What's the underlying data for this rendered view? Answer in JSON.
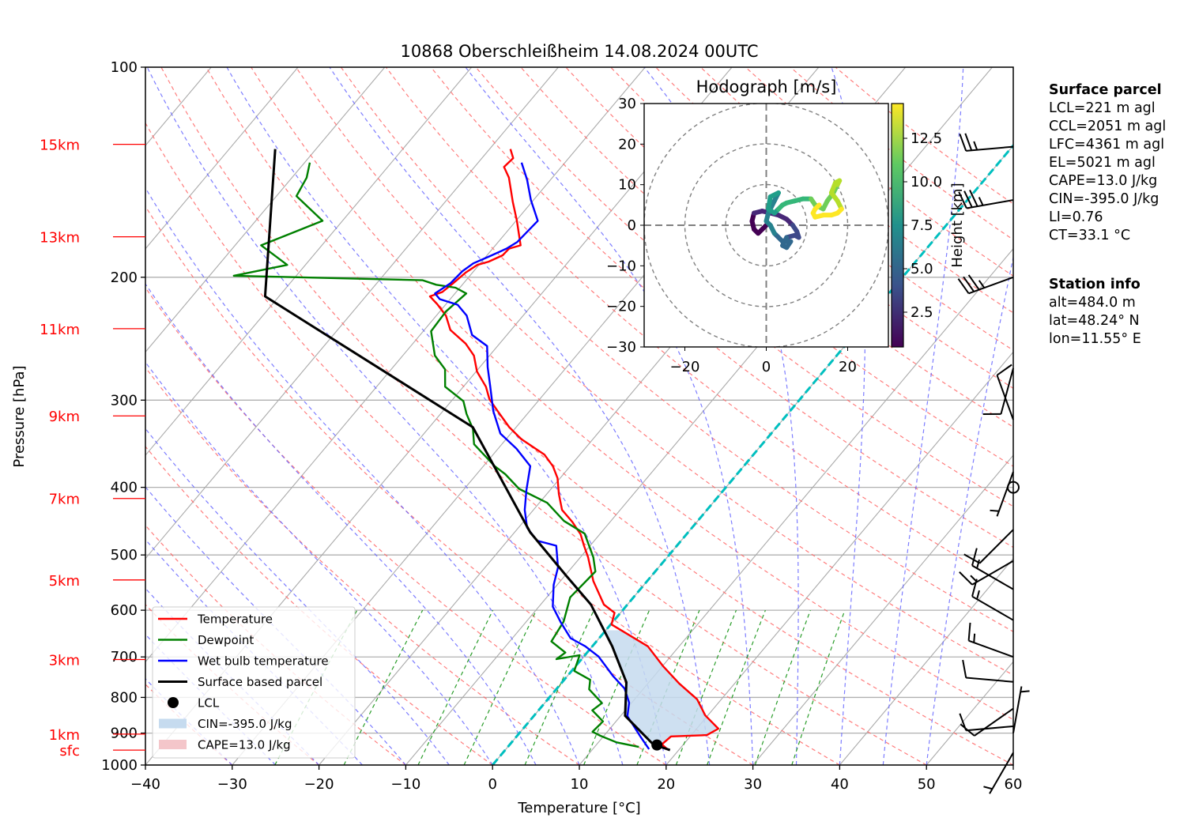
{
  "chart_data": {
    "type": "line",
    "title": "10868 Oberschleißheim 14.08.2024 00UTC",
    "xlabel": "Temperature [°C]",
    "ylabel": "Pressure [hPa]",
    "xlim": [
      -40,
      60
    ],
    "ylim": [
      1000,
      100
    ],
    "yscale": "log",
    "skew": "skew-T (isotherms tilted 45°)",
    "grid": true,
    "x_ticks": [
      -40,
      -30,
      -20,
      -10,
      0,
      10,
      20,
      30,
      40,
      50,
      60
    ],
    "x_tick_labels": [
      "−40",
      "−30",
      "−20",
      "−10",
      "0",
      "10",
      "20",
      "30",
      "40",
      "50",
      "60"
    ],
    "y_ticks": [
      100,
      200,
      300,
      400,
      500,
      600,
      700,
      800,
      900,
      1000
    ],
    "y_tick_labels": [
      "100",
      "200",
      "300",
      "400",
      "500",
      "600",
      "700",
      "800",
      "900",
      "1000"
    ],
    "height_markers": [
      {
        "label": "15km",
        "p": 129
      },
      {
        "label": "13km",
        "p": 175
      },
      {
        "label": "11km",
        "p": 237
      },
      {
        "label": "9km",
        "p": 316
      },
      {
        "label": "7km",
        "p": 415
      },
      {
        "label": "5km",
        "p": 543
      },
      {
        "label": "3km",
        "p": 706
      },
      {
        "label": "1km",
        "p": 903
      },
      {
        "label": "sfc",
        "p": 952
      }
    ],
    "freezing_line": {
      "name": "0°C isotherm",
      "T": 0,
      "color": "#00bfbf"
    },
    "series": [
      {
        "name": "Temperature",
        "color": "#ff0000",
        "p": [
          949,
          934,
          910,
          906,
          887,
          849,
          805,
          764,
          722,
          676,
          645,
          629,
          605,
          589,
          545,
          504,
          485,
          467,
          448,
          431,
          409,
          388,
          373,
          359,
          341,
          328,
          311,
          299,
          287,
          273,
          259,
          249,
          238,
          227,
          219,
          213,
          210,
          204,
          197,
          192,
          190,
          186,
          182,
          180,
          166,
          156,
          144,
          139,
          135,
          131
        ],
        "T": [
          18.6,
          17.5,
          17.8,
          21.8,
          22.5,
          19.7,
          17.2,
          13.6,
          10.1,
          6.4,
          2.3,
          0.1,
          -0.7,
          -2.7,
          -6.2,
          -9.1,
          -10.7,
          -12.2,
          -14.4,
          -16.7,
          -18.6,
          -20.3,
          -22.0,
          -24.1,
          -28.3,
          -30.8,
          -33.7,
          -35.8,
          -37.4,
          -39.9,
          -41.8,
          -43.9,
          -47.0,
          -48.9,
          -50.9,
          -52.6,
          -51.6,
          -51.2,
          -50.8,
          -50.2,
          -49.2,
          -48.2,
          -48.1,
          -47.1,
          -49.9,
          -52.2,
          -55.0,
          -56.6,
          -56.4,
          -57.6
        ]
      },
      {
        "name": "Dewpoint",
        "color": "#008000",
        "p": [
          942,
          928,
          908,
          896,
          866,
          835,
          815,
          779,
          755,
          733,
          696,
          705,
          690,
          665,
          623,
          575,
          528,
          504,
          466,
          447,
          421,
          402,
          383,
          373,
          347,
          330,
          314,
          301,
          287,
          271,
          259,
          239,
          224,
          211,
          207,
          205,
          202,
          199,
          192,
          180,
          166,
          153,
          144,
          137
        ],
        "T": [
          15.1,
          12.1,
          9.6,
          8.3,
          8.5,
          6.2,
          6.6,
          3.8,
          3.0,
          0.3,
          -0.6,
          -2.9,
          -2.5,
          -5.2,
          -5.7,
          -7.3,
          -6.9,
          -8.5,
          -11.8,
          -15.4,
          -19.1,
          -23.7,
          -26.7,
          -28.7,
          -33.2,
          -34.8,
          -37.0,
          -38.6,
          -42.1,
          -43.8,
          -46.3,
          -49.1,
          -49.3,
          -48.7,
          -50.5,
          -53.0,
          -55.0,
          -77.2,
          -72.1,
          -77.0,
          -72.3,
          -77.7,
          -78.3,
          -79.4
        ]
      },
      {
        "name": "Wet bulb temperature",
        "color": "#0000ff",
        "p": [
          949,
          909,
          851,
          814,
          777,
          746,
          699,
          676,
          658,
          624,
          593,
          552,
          521,
          485,
          477,
          457,
          431,
          404,
          373,
          352,
          335,
          311,
          287,
          269,
          251,
          242,
          227,
          219,
          215,
          211,
          204,
          196,
          191,
          187,
          182,
          178,
          166,
          155,
          145,
          137
        ],
        "T": [
          16.5,
          14.2,
          10.8,
          9.7,
          7.8,
          5.3,
          1.7,
          -0.8,
          -3.3,
          -6.0,
          -8.4,
          -10.4,
          -11.6,
          -13.9,
          -16.6,
          -19.0,
          -21.0,
          -22.7,
          -24.6,
          -27.9,
          -31.2,
          -34.2,
          -36.9,
          -39.1,
          -41.2,
          -44.0,
          -46.5,
          -48.6,
          -51.2,
          -52.3,
          -51.5,
          -51.3,
          -50.8,
          -49.7,
          -48.4,
          -47.8,
          -47.5,
          -50.3,
          -52.7,
          -55.0
        ]
      },
      {
        "name": "Surface based parcel",
        "color": "#000000",
        "p": [
          952,
          934,
          850,
          761,
          676,
          589,
          535,
          464,
          328,
          213,
          131
        ],
        "T": [
          19.0,
          16.5,
          10.5,
          7.4,
          2.3,
          -4.2,
          -9.9,
          -18.2,
          -35.0,
          -71.6,
          -84.7
        ]
      }
    ],
    "lcl_point": {
      "name": "LCL",
      "p": 936,
      "T": 17.0
    },
    "cin_region": {
      "label": "CIN=-395.0 J/kg",
      "p_range": [
        950,
        640
      ],
      "color": "#c6dbef"
    },
    "cape_region": {
      "label": "CAPE=13.0 J/kg",
      "color": "#f4c6ca"
    },
    "legend": {
      "placement": "lower-left",
      "entries": [
        "Temperature",
        "Dewpoint",
        "Wet bulb temperature",
        "Surface based parcel",
        "LCL",
        "CIN=-395.0 J/kg",
        "CAPE=13.0 J/kg"
      ]
    },
    "wind_barbs": [
      {
        "p": 130,
        "dir": 265,
        "speed_kt": 25
      },
      {
        "p": 155,
        "dir": 260,
        "speed_kt": 35
      },
      {
        "p": 200,
        "dir": 250,
        "speed_kt": 35
      },
      {
        "p": 270,
        "dir": 195,
        "speed_kt": 10
      },
      {
        "p": 320,
        "dir": 340,
        "speed_kt": 10
      },
      {
        "p": 380,
        "dir": 200,
        "speed_kt": 5
      },
      {
        "p": 400,
        "dir": 0,
        "speed_kt": 0
      },
      {
        "p": 460,
        "dir": 225,
        "speed_kt": 10
      },
      {
        "p": 510,
        "dir": 240,
        "speed_kt": 15
      },
      {
        "p": 560,
        "dir": 300,
        "speed_kt": 15
      },
      {
        "p": 620,
        "dir": 300,
        "speed_kt": 15
      },
      {
        "p": 700,
        "dir": 290,
        "speed_kt": 15
      },
      {
        "p": 760,
        "dir": 275,
        "speed_kt": 10
      },
      {
        "p": 830,
        "dir": 235,
        "speed_kt": 10
      },
      {
        "p": 880,
        "dir": 265,
        "speed_kt": 10
      },
      {
        "p": 900,
        "dir": 10,
        "speed_kt": 5
      },
      {
        "p": 960,
        "dir": 210,
        "speed_kt": 5
      }
    ],
    "hodograph": {
      "title": "Hodograph [m/s]",
      "xlim": [
        -30,
        30
      ],
      "ylim": [
        -30,
        30
      ],
      "x_ticks": [
        -20,
        0,
        20
      ],
      "x_tick_labels": [
        "−20",
        "0",
        "20"
      ],
      "y_ticks": [
        -30,
        -20,
        -10,
        0,
        10,
        20,
        30
      ],
      "y_tick_labels": [
        "−30",
        "−20",
        "−10",
        "0",
        "10",
        "20",
        "30"
      ],
      "rings": [
        10,
        20,
        30
      ],
      "colorbar": {
        "label": "Height [km]",
        "ticks": [
          2.5,
          5.0,
          7.5,
          10.0,
          12.5
        ],
        "tick_labels": [
          "2.5",
          "5.0",
          "7.5",
          "10.0",
          "12.5"
        ],
        "range": [
          0.5,
          14.5
        ]
      },
      "u": [
        0,
        -1,
        -2,
        -3,
        -3.5,
        -3,
        -1,
        1,
        3,
        5,
        6.5,
        7.5,
        8,
        7,
        5,
        4,
        5,
        6,
        4,
        2,
        1,
        0,
        0.5,
        2,
        3,
        1,
        0.5,
        2,
        3,
        4,
        5,
        7,
        9,
        11,
        12,
        14,
        15,
        16.5,
        17.5,
        18,
        17,
        16,
        17.5,
        18.5,
        17.5,
        16,
        14,
        12,
        11.5,
        12,
        13
      ],
      "v": [
        0,
        -1,
        -2,
        -1,
        1,
        3,
        3.5,
        3,
        2.5,
        1.5,
        0,
        -1.5,
        -3,
        -2.5,
        -3,
        -5,
        -5.5,
        -4,
        -4,
        -2,
        0,
        1,
        3,
        6,
        8,
        7,
        4,
        3,
        4,
        5,
        5.5,
        6,
        6.5,
        6.5,
        5,
        4,
        6,
        8,
        10,
        11,
        10.5,
        8,
        6,
        4,
        3,
        2.5,
        2.5,
        2,
        3,
        4,
        5
      ],
      "height_km": [
        0.5,
        0.8,
        1.1,
        1.4,
        1.7,
        2.0,
        2.3,
        2.6,
        2.9,
        3.2,
        3.5,
        3.8,
        4.1,
        4.4,
        4.7,
        5.0,
        5.3,
        5.6,
        5.9,
        6.2,
        6.5,
        6.8,
        7.1,
        7.4,
        7.7,
        8.0,
        8.3,
        8.6,
        8.9,
        9.2,
        9.5,
        9.8,
        10.1,
        10.4,
        10.7,
        11.0,
        11.3,
        11.6,
        11.9,
        12.2,
        12.5,
        12.8,
        13.0,
        13.2,
        13.4,
        13.6,
        13.8,
        14.0,
        14.2,
        14.3,
        14.4
      ]
    }
  },
  "info_panel": {
    "surface_parcel_title": "Surface parcel",
    "surface_parcel_lines": [
      "LCL=221 m agl",
      "CCL=2051 m agl",
      "LFC=4361 m agl",
      "EL=5021 m agl",
      "CAPE=13.0 J/kg",
      "CIN=-395.0 J/kg",
      "LI=0.76",
      "CT=33.1 °C"
    ],
    "station_title": "Station info",
    "station_lines": [
      "alt=484.0 m",
      "lat=48.24° N",
      "lon=11.55° E"
    ]
  }
}
